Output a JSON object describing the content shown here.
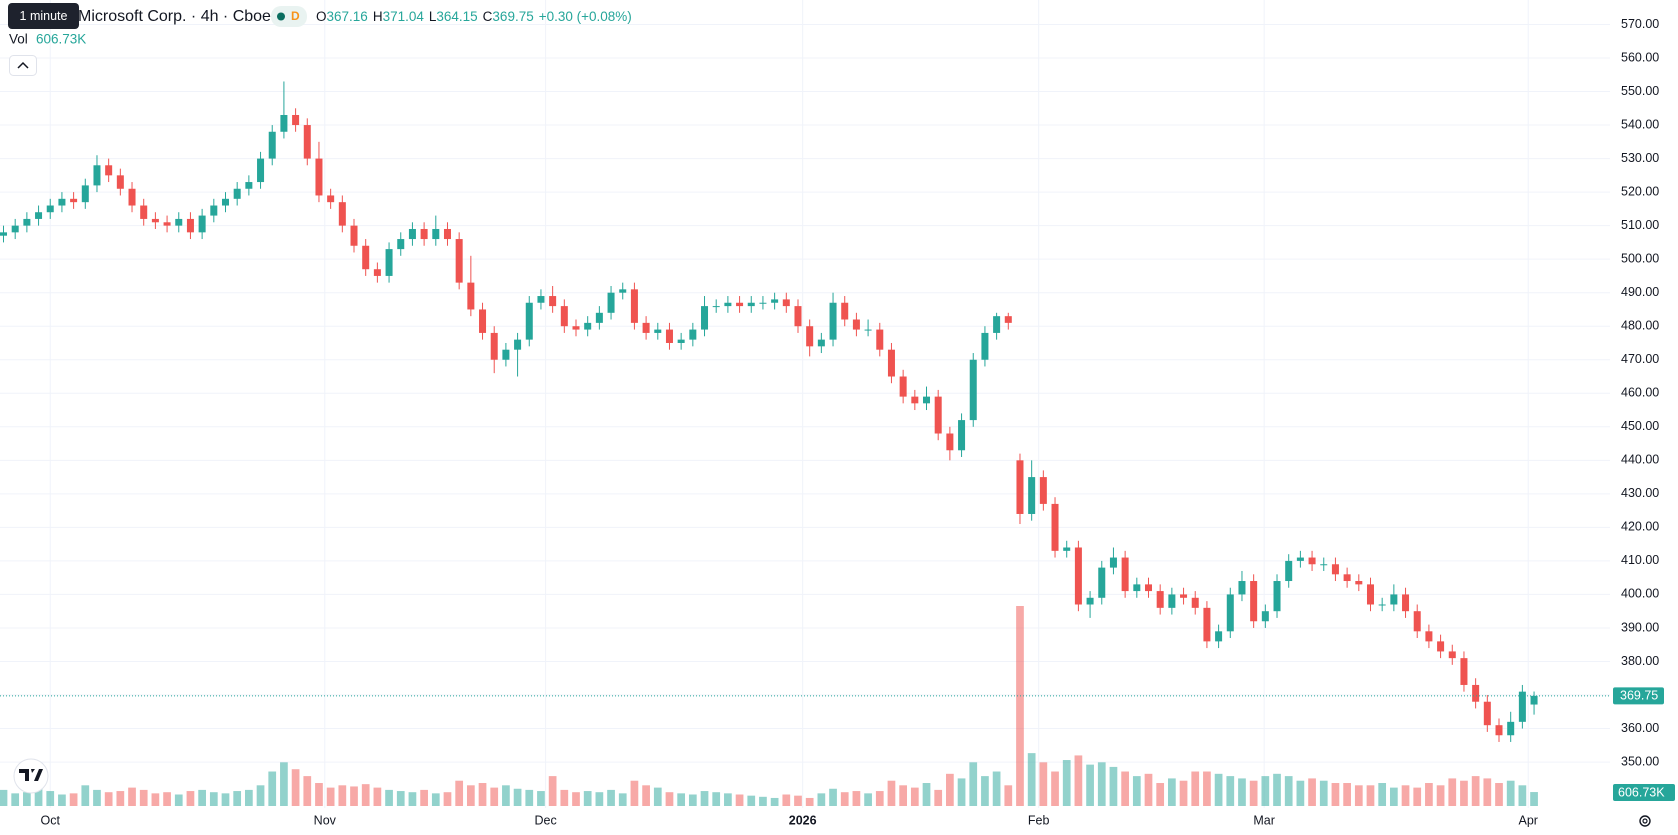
{
  "tooltip": "1 minute",
  "chart_data": {
    "type": "candlestick",
    "title": "Microsoft Corp. · 4h · Cboe One",
    "status": "D",
    "legend_labels": {
      "open": "O",
      "high": "H",
      "low": "L",
      "close": "C",
      "volume": "Vol"
    },
    "change": "+0.30 (+0.08%)",
    "volume_label": "606.73K",
    "up_color": "#26a69a",
    "down_color": "#ef5350",
    "grid": true,
    "ylim": [
      336.3,
      577.3
    ],
    "yticks": [
      {
        "value": 350,
        "label": "350.00"
      },
      {
        "value": 360,
        "label": "360.00"
      },
      {
        "value": 370,
        "label": "370.00"
      },
      {
        "value": 380,
        "label": "380.00"
      },
      {
        "value": 390,
        "label": "390.00"
      },
      {
        "value": 400,
        "label": "400.00"
      },
      {
        "value": 410,
        "label": "410.00"
      },
      {
        "value": 420,
        "label": "420.00"
      },
      {
        "value": 430,
        "label": "430.00"
      },
      {
        "value": 440,
        "label": "440.00"
      },
      {
        "value": 450,
        "label": "450.00"
      },
      {
        "value": 460,
        "label": "460.00"
      },
      {
        "value": 470,
        "label": "470.00"
      },
      {
        "value": 480,
        "label": "480.00"
      },
      {
        "value": 490,
        "label": "490.00"
      },
      {
        "value": 500,
        "label": "500.00"
      },
      {
        "value": 510,
        "label": "510.00"
      },
      {
        "value": 520,
        "label": "520.00"
      },
      {
        "value": 530,
        "label": "530.00"
      },
      {
        "value": 540,
        "label": "540.00"
      },
      {
        "value": 550,
        "label": "550.00"
      },
      {
        "value": 560,
        "label": "560.00"
      },
      {
        "value": 570,
        "label": "570.00"
      }
    ],
    "xlim": [
      -0.3,
      137.5
    ],
    "xticks": [
      {
        "value": 4,
        "label": "Oct"
      },
      {
        "value": 27.5,
        "label": "Nov"
      },
      {
        "value": 46.4,
        "label": "Dec"
      },
      {
        "value": 68.4,
        "label": "2026"
      },
      {
        "value": 88.6,
        "label": "Feb"
      },
      {
        "value": 107.9,
        "label": "Mar"
      },
      {
        "value": 130.5,
        "label": "Apr"
      }
    ],
    "open": [
      507,
      508,
      510,
      512,
      514,
      516,
      518,
      517,
      522,
      528,
      525,
      521,
      516,
      512,
      511,
      510,
      512,
      508,
      513,
      516,
      518,
      521,
      523,
      530,
      538,
      543,
      540,
      530,
      519,
      517,
      510,
      504,
      497,
      495,
      503,
      506,
      509,
      506,
      509,
      506,
      493,
      485,
      478,
      470,
      473,
      476,
      487,
      489,
      486,
      480,
      479,
      481,
      484,
      490,
      491,
      481,
      478,
      479,
      475,
      476,
      479,
      486,
      486,
      487,
      486,
      487,
      487,
      488,
      486,
      480,
      474,
      476,
      487,
      482,
      479,
      479,
      473,
      465,
      459,
      457,
      459,
      448,
      443,
      452,
      470,
      478,
      483,
      440,
      424,
      435,
      427,
      413,
      414,
      397,
      399,
      408,
      411,
      401,
      403,
      401,
      396,
      400,
      399,
      396,
      386,
      389,
      400,
      404,
      392,
      395,
      404,
      410,
      411,
      409,
      409,
      406,
      404,
      403,
      397,
      397,
      400,
      395,
      389,
      386,
      383,
      381,
      373,
      368,
      361,
      358,
      362,
      367.16
    ],
    "high": [
      510,
      512,
      514,
      516,
      518,
      520,
      520,
      524,
      531,
      530,
      527,
      523,
      518,
      514,
      513,
      514,
      514,
      515,
      518,
      520,
      523,
      525,
      532,
      540,
      553,
      545,
      542,
      535,
      521,
      519,
      512,
      506,
      499,
      505,
      508,
      511,
      511,
      513,
      511,
      508,
      501,
      487,
      480,
      475,
      478,
      489,
      491,
      492,
      488,
      482,
      483,
      486,
      492,
      493,
      493,
      483,
      481,
      481,
      478,
      481,
      489,
      488,
      489,
      489,
      489,
      489,
      490,
      490,
      488,
      482,
      478,
      490,
      489,
      484,
      482,
      481,
      475,
      467,
      461,
      462,
      461,
      450,
      454,
      472,
      480,
      484,
      484,
      442,
      440,
      437,
      429,
      416,
      416,
      401,
      410,
      414,
      413,
      405,
      405,
      403,
      402,
      402,
      401,
      398,
      391,
      402,
      407,
      406,
      397,
      406,
      412,
      413,
      413,
      411,
      411,
      408,
      406,
      405,
      399,
      403,
      402,
      397,
      391,
      388,
      385,
      383,
      375,
      370,
      363,
      365,
      373,
      371.04
    ],
    "low": [
      505,
      506,
      508,
      510,
      512,
      514,
      515,
      515,
      520,
      523,
      519,
      514,
      510,
      509,
      508,
      508,
      506,
      506,
      511,
      514,
      516,
      519,
      521,
      528,
      536,
      538,
      528,
      517,
      515,
      508,
      502,
      495,
      493,
      493,
      501,
      504,
      504,
      504,
      504,
      491,
      483,
      476,
      466,
      468,
      465,
      474,
      485,
      484,
      478,
      477,
      477,
      479,
      482,
      488,
      479,
      476,
      476,
      473,
      473,
      474,
      477,
      484,
      484,
      484,
      484,
      485,
      485,
      484,
      478,
      471,
      472,
      474,
      480,
      477,
      477,
      471,
      463,
      457,
      455,
      455,
      446,
      440,
      441,
      450,
      468,
      476,
      479,
      421,
      422,
      425,
      411,
      411,
      395,
      393,
      397,
      406,
      399,
      399,
      399,
      394,
      394,
      397,
      394,
      384,
      384,
      387,
      398,
      390,
      390,
      393,
      402,
      408,
      407,
      407,
      404,
      402,
      401,
      395,
      395,
      395,
      393,
      387,
      384,
      381,
      379,
      371,
      366,
      359,
      356,
      356,
      360,
      364.15
    ],
    "close": [
      508,
      510,
      512,
      514,
      516,
      518,
      517,
      522,
      528,
      525,
      521,
      516,
      512,
      511,
      510,
      512,
      508,
      513,
      516,
      518,
      521,
      523,
      530,
      538,
      543,
      540,
      530,
      519,
      517,
      510,
      504,
      497,
      495,
      503,
      506,
      509,
      506,
      509,
      506,
      493,
      485,
      478,
      470,
      473,
      476,
      487,
      489,
      486,
      480,
      479,
      481,
      484,
      490,
      491,
      481,
      478,
      479,
      475,
      476,
      479,
      486,
      486,
      487,
      486,
      487,
      487,
      488,
      486,
      480,
      474,
      476,
      487,
      482,
      479,
      479,
      473,
      465,
      459,
      457,
      459,
      448,
      443,
      452,
      470,
      478,
      483,
      481,
      424,
      435,
      427,
      413,
      414,
      397,
      399,
      408,
      411,
      401,
      403,
      401,
      396,
      400,
      399,
      396,
      386,
      389,
      400,
      404,
      392,
      395,
      404,
      410,
      411,
      409,
      409,
      406,
      404,
      403,
      397,
      397,
      400,
      395,
      389,
      386,
      383,
      381,
      373,
      368,
      361,
      358,
      362,
      371,
      369.75
    ],
    "volume": [
      700,
      550,
      600,
      800,
      650,
      500,
      550,
      900,
      700,
      600,
      650,
      800,
      700,
      550,
      600,
      500,
      650,
      700,
      600,
      550,
      650,
      700,
      900,
      1500,
      1900,
      1600,
      1300,
      1000,
      800,
      900,
      850,
      950,
      800,
      700,
      650,
      600,
      700,
      550,
      600,
      1100,
      900,
      1000,
      800,
      900,
      750,
      700,
      650,
      1300,
      700,
      600,
      650,
      600,
      700,
      550,
      1100,
      900,
      800,
      600,
      550,
      500,
      650,
      600,
      550,
      500,
      450,
      400,
      350,
      500,
      450,
      350,
      550,
      750,
      600,
      650,
      550,
      650,
      1100,
      900,
      800,
      1000,
      700,
      1400,
      1200,
      1900,
      1300,
      1500,
      900,
      8700,
      2300,
      1900,
      1500,
      2000,
      2200,
      1800,
      1900,
      1700,
      1500,
      1300,
      1400,
      1000,
      1200,
      1100,
      1500,
      1500,
      1400,
      1300,
      1200,
      1100,
      1300,
      1400,
      1300,
      1100,
      1200,
      1100,
      1000,
      1000,
      900,
      900,
      1000,
      800,
      900,
      800,
      1000,
      900,
      1200,
      1100,
      1300,
      1200,
      1000,
      1100,
      900,
      606.73
    ]
  }
}
